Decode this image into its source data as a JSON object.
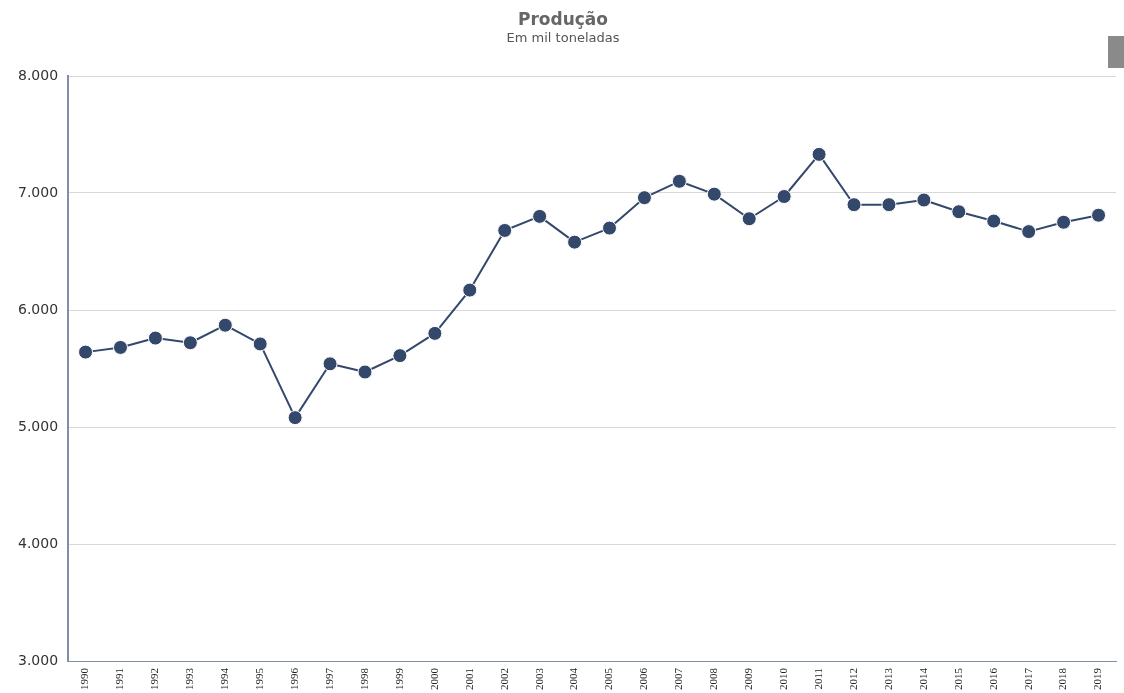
{
  "chart_data": {
    "type": "line",
    "title": "Produção",
    "subtitle": "Em mil toneladas",
    "categories": [
      "1990",
      "1991",
      "1992",
      "1993",
      "1994",
      "1995",
      "1996",
      "1997",
      "1998",
      "1999",
      "2000",
      "2001",
      "2002",
      "2003",
      "2004",
      "2005",
      "2006",
      "2007",
      "2008",
      "2009",
      "2010",
      "2011",
      "2012",
      "2013",
      "2014",
      "2015",
      "2016",
      "2017",
      "2018",
      "2019"
    ],
    "series": [
      {
        "color": "#34486b",
        "values": [
          5640,
          5680,
          5760,
          5720,
          5870,
          5710,
          5080,
          5540,
          5470,
          5610,
          5800,
          6170,
          6680,
          6800,
          6580,
          6700,
          6960,
          7100,
          6990,
          6780,
          6970,
          7330,
          6900,
          6900,
          6940,
          6840,
          6760,
          6670,
          6750,
          6810
        ]
      }
    ],
    "ylim": [
      3000,
      8000
    ],
    "yticks": [
      {
        "value": 3000,
        "label": "3.000"
      },
      {
        "value": 4000,
        "label": "4.000"
      },
      {
        "value": 5000,
        "label": "5.000"
      },
      {
        "value": 6000,
        "label": "6.000"
      },
      {
        "value": 7000,
        "label": "7.000"
      },
      {
        "value": 8000,
        "label": "8.000"
      }
    ],
    "grid": "y",
    "legend": false,
    "marker": "circle",
    "line_style": "solid"
  }
}
